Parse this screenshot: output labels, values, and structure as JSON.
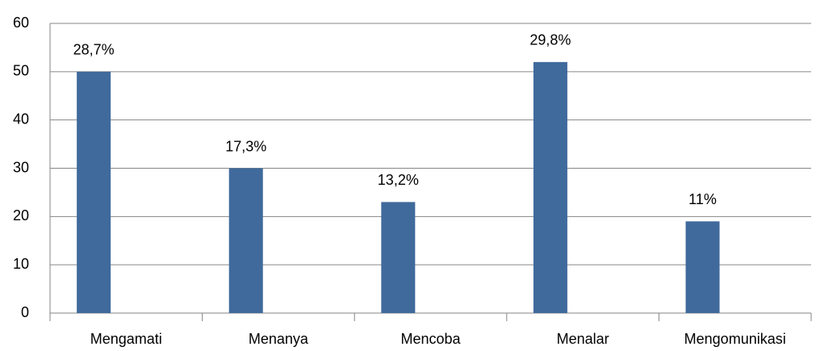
{
  "chart_data": {
    "type": "bar",
    "categories": [
      "Mengamati",
      "Menanya",
      "Mencoba",
      "Menalar",
      "Mengomunikasi"
    ],
    "values": [
      50,
      30,
      23,
      52,
      19
    ],
    "percent_labels": [
      "28,7%",
      "17,3%",
      "13,2%",
      "29,8%",
      "11%"
    ],
    "color": "#406a9c",
    "ylim": [
      0,
      60
    ],
    "yticks": [
      0,
      10,
      20,
      30,
      40,
      50,
      60
    ],
    "grid": true
  }
}
